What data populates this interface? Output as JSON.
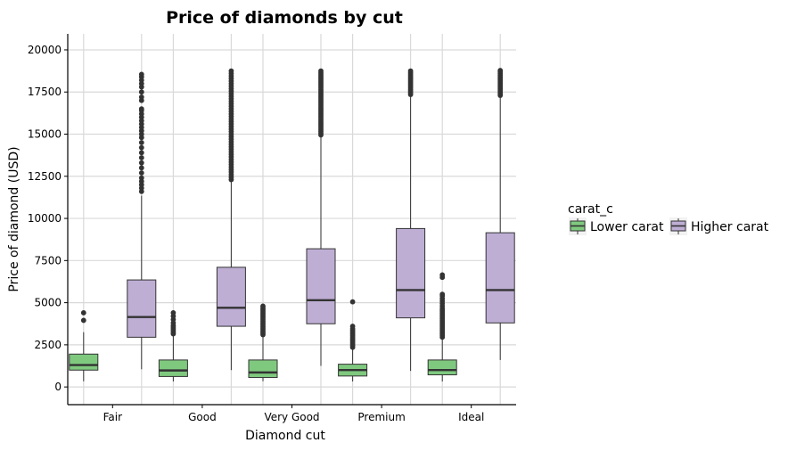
{
  "chart_data": {
    "type": "box",
    "title": "Price of diamonds by cut",
    "xlabel": "Diamond cut",
    "ylabel": "Price of diamond (USD)",
    "categories": [
      "Fair",
      "Good",
      "Very Good",
      "Premium",
      "Ideal"
    ],
    "yticks": [
      0,
      2500,
      5000,
      7500,
      10000,
      12500,
      15000,
      17500,
      20000
    ],
    "ylim": [
      -1050,
      20950
    ],
    "grid": true,
    "legend": {
      "title": "carat_c",
      "placement": "right"
    },
    "series": [
      {
        "name": "Lower carat",
        "color": "#7fc97f",
        "boxes": [
          {
            "category": "Fair",
            "whisker_low": 337,
            "q1": 1000,
            "median": 1300,
            "q3": 1950,
            "whisker_high": 3250,
            "outliers": [
              3950,
              4400
            ]
          },
          {
            "category": "Good",
            "whisker_low": 327,
            "q1": 620,
            "median": 980,
            "q3": 1600,
            "whisker_high": 3050,
            "outliers": [
              3150,
              3250,
              3350,
              3450,
              3550,
              3650,
              3800,
              4000,
              4200,
              4400
            ]
          },
          {
            "category": "Very Good",
            "whisker_low": 336,
            "q1": 560,
            "median": 860,
            "q3": 1600,
            "whisker_high": 3000,
            "outliers": [
              3100,
              3200,
              3300,
              3400,
              3500,
              3600,
              3700,
              3800,
              3900,
              4000,
              4100,
              4200,
              4300,
              4400,
              4500,
              4600,
              4700,
              4800
            ]
          },
          {
            "category": "Premium",
            "whisker_low": 326,
            "q1": 650,
            "median": 1000,
            "q3": 1350,
            "whisker_high": 2250,
            "outliers": [
              2350,
              2450,
              2550,
              2650,
              2750,
              2850,
              2950,
              3050,
              3150,
              3250,
              3350,
              3450,
              3600,
              5050
            ]
          },
          {
            "category": "Ideal",
            "whisker_low": 326,
            "q1": 720,
            "median": 1000,
            "q3": 1600,
            "whisker_high": 2850,
            "outliers": [
              2950,
              3050,
              3150,
              3250,
              3350,
              3450,
              3550,
              3650,
              3750,
              3850,
              3950,
              4050,
              4150,
              4250,
              4350,
              4450,
              4550,
              4650,
              4800,
              4950,
              5100,
              5250,
              5400,
              5500,
              6500,
              6650
            ]
          }
        ]
      },
      {
        "name": "Higher carat",
        "color": "#beaed4",
        "boxes": [
          {
            "category": "Fair",
            "whisker_low": 1050,
            "q1": 2950,
            "median": 4150,
            "q3": 6350,
            "whisker_high": 11350,
            "outliers": [
              11600,
              11800,
              12000,
              12200,
              12400,
              12700,
              13000,
              13300,
              13600,
              13900,
              14200,
              14500,
              14800,
              15000,
              15200,
              15400,
              15600,
              15800,
              16000,
              16200,
              16400,
              16500,
              17000,
              17200,
              17500,
              17800,
              18000,
              18200,
              18400,
              18550
            ]
          },
          {
            "category": "Good",
            "whisker_low": 1000,
            "q1": 3600,
            "median": 4700,
            "q3": 7100,
            "whisker_high": 12200,
            "outliers": [
              12300,
              12450,
              12600,
              12750,
              12900,
              13050,
              13200,
              13350,
              13500,
              13650,
              13800,
              13950,
              14100,
              14250,
              14400,
              14550,
              14700,
              14850,
              15000,
              15150,
              15300,
              15450,
              15600,
              15750,
              15900,
              16050,
              16200,
              16350,
              16500,
              16650,
              16800,
              16950,
              17100,
              17250,
              17400,
              17550,
              17700,
              17850,
              18000,
              18150,
              18300,
              18450,
              18600,
              18750
            ]
          },
          {
            "category": "Very Good",
            "whisker_low": 1250,
            "q1": 3750,
            "median": 5150,
            "q3": 8200,
            "whisker_high": 14850,
            "outliers": [
              14950,
              15050,
              15150,
              15250,
              15350,
              15450,
              15550,
              15650,
              15750,
              15850,
              15950,
              16050,
              16150,
              16250,
              16350,
              16450,
              16550,
              16650,
              16750,
              16850,
              16950,
              17050,
              17150,
              17250,
              17350,
              17450,
              17550,
              17650,
              17750,
              17850,
              17950,
              18050,
              18150,
              18250,
              18350,
              18450,
              18550,
              18650,
              18750
            ]
          },
          {
            "category": "Premium",
            "whisker_low": 950,
            "q1": 4100,
            "median": 5750,
            "q3": 9400,
            "whisker_high": 17300,
            "outliers": [
              17350,
              17450,
              17550,
              17650,
              17750,
              17850,
              17950,
              18050,
              18150,
              18250,
              18350,
              18450,
              18550,
              18650,
              18750
            ]
          },
          {
            "category": "Ideal",
            "whisker_low": 1600,
            "q1": 3800,
            "median": 5750,
            "q3": 9150,
            "whisker_high": 17250,
            "outliers": [
              17300,
              17400,
              17500,
              17600,
              17700,
              17800,
              17900,
              18000,
              18100,
              18200,
              18300,
              18400,
              18500,
              18600,
              18700,
              18780
            ]
          }
        ]
      }
    ]
  }
}
